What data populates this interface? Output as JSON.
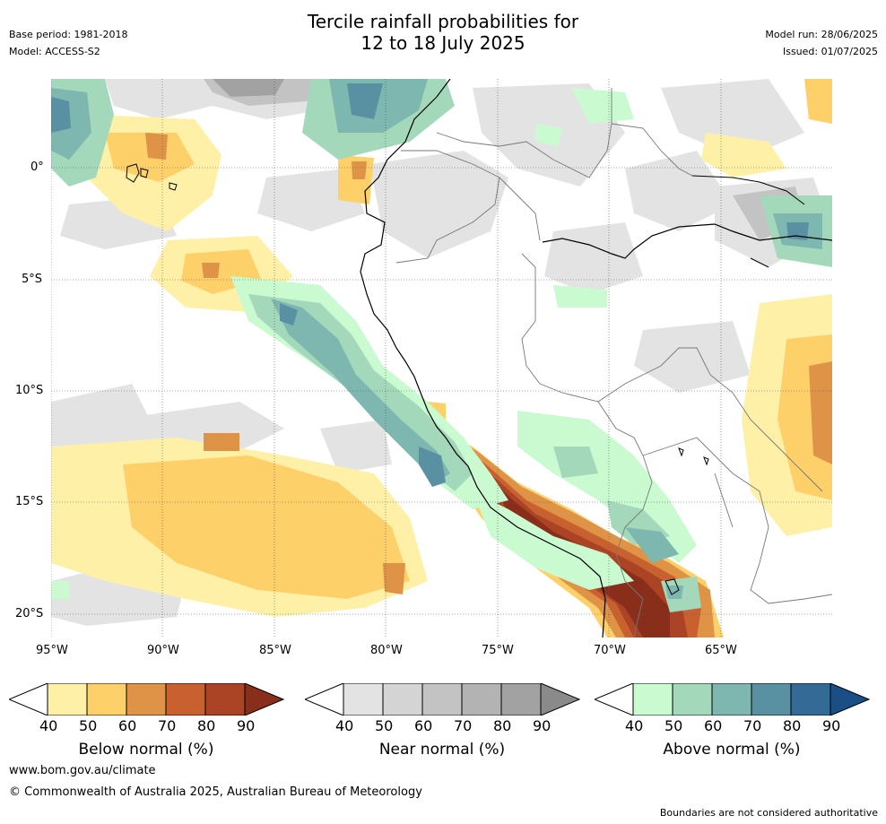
{
  "title_line1": "Tercile rainfall probabilities for",
  "title_line2": "12 to 18 July 2025",
  "base_period": "Base period: 1981-2018",
  "model": "Model: ACCESS-S2",
  "model_run": "Model run: 28/06/2025",
  "issued": "Issued: 01/07/2025",
  "lat_ticks": [
    "0°",
    "5°S",
    "10°S",
    "15°S",
    "20°S"
  ],
  "lon_ticks": [
    "95°W",
    "90°W",
    "85°W",
    "80°W",
    "75°W",
    "70°W",
    "65°W"
  ],
  "colorbars": [
    {
      "label": "Below normal (%)",
      "ticks": [
        "40",
        "50",
        "60",
        "70",
        "80",
        "90"
      ],
      "colors": [
        "#fff0a8",
        "#fdd06a",
        "#de9346",
        "#c8612f",
        "#aa4424",
        "#8a2e1c"
      ]
    },
    {
      "label": "Near normal (%)",
      "ticks": [
        "40",
        "50",
        "60",
        "70",
        "80",
        "90"
      ],
      "colors": [
        "#e3e3e3",
        "#d4d4d4",
        "#c3c3c3",
        "#b3b3b3",
        "#a2a2a2",
        "#8a8a8a"
      ]
    },
    {
      "label": "Above normal (%)",
      "ticks": [
        "40",
        "50",
        "60",
        "70",
        "80",
        "90"
      ],
      "colors": [
        "#c9fad0",
        "#a3d8bb",
        "#7eb7b0",
        "#5a91a2",
        "#336a96",
        "#1a4f86"
      ]
    }
  ],
  "website": "www.bom.gov.au/climate",
  "copyright": "© Commonwealth of Australia 2025, Australian Bureau of Meteorology",
  "disclaimer": "Boundaries are not considered authoritative"
}
